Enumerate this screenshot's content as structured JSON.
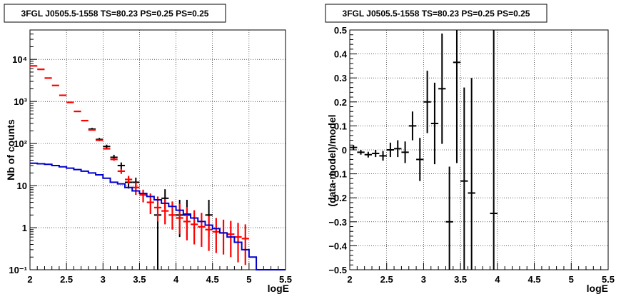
{
  "chart_data": [
    {
      "type": "line",
      "title": "3FGL J0505.5-1558 TS=80.23 PS=0.25 PS=0.25",
      "xlabel": "logE",
      "ylabel": "Nb of counts",
      "xlim": [
        2,
        5.5
      ],
      "ylim": [
        0.1,
        50000
      ],
      "yscale": "log",
      "grid": true,
      "x_ticks": [
        2,
        2.5,
        3,
        3.5,
        4,
        4.5,
        5,
        5.5
      ],
      "x_tick_labels": [
        "2",
        "2.5",
        "3",
        "3.5",
        "4",
        "4.5",
        "5",
        "5.5"
      ],
      "y_ticks": [
        0.1,
        1,
        10,
        100,
        1000,
        10000
      ],
      "y_tick_labels": [
        "10⁻¹",
        "1",
        "10",
        "10²",
        "10³",
        "10⁴"
      ],
      "bin_edges": [
        2.0,
        2.1,
        2.2,
        2.3,
        2.4,
        2.5,
        2.6,
        2.7,
        2.8,
        2.9,
        3.0,
        3.1,
        3.2,
        3.3,
        3.4,
        3.5,
        3.6,
        3.7,
        3.8,
        3.9,
        4.0,
        4.1,
        4.2,
        4.3,
        4.4,
        4.5,
        4.6,
        4.7,
        4.8,
        4.9,
        5.0,
        5.1,
        5.2,
        5.3,
        5.4,
        5.5
      ],
      "series": [
        {
          "role": "data",
          "color": "#000000",
          "x": [
            2.85,
            2.95,
            3.05,
            3.15,
            3.25,
            3.35,
            3.45,
            3.75,
            3.85,
            4.05,
            4.15,
            4.45
          ],
          "y": [
            220,
            125,
            85,
            47,
            30,
            12,
            12,
            2,
            5,
            2,
            2,
            2
          ],
          "yerr_low": [
            15,
            11,
            9,
            7,
            5.5,
            3.5,
            3.5,
            1.9,
            2.2,
            1.4,
            1.4,
            1.4
          ],
          "yerr_high": [
            15,
            11,
            9,
            7,
            5.5,
            3.5,
            3.5,
            2.6,
            3.2,
            2.6,
            2.6,
            2.6
          ]
        },
        {
          "role": "model",
          "color": "#ff0000",
          "x": [
            2.05,
            2.15,
            2.25,
            2.35,
            2.45,
            2.55,
            2.65,
            2.75,
            2.85,
            2.95,
            3.05,
            3.15,
            3.25,
            3.35,
            3.45,
            3.55,
            3.65,
            3.75,
            3.85,
            3.95,
            4.05,
            4.15,
            4.25,
            4.35,
            4.45,
            4.55,
            4.65,
            4.75,
            4.85,
            4.95
          ],
          "y": [
            7000,
            5800,
            3600,
            2400,
            1400,
            950,
            580,
            350,
            210,
            120,
            75,
            42,
            22,
            14,
            9,
            6,
            4,
            3,
            2.5,
            2,
            1.7,
            1.4,
            1.2,
            1.05,
            0.9,
            0.8,
            0.75,
            0.7,
            0.6,
            0.55
          ],
          "yerr_low": [
            0,
            0,
            0,
            0,
            0,
            0,
            0,
            0,
            0,
            0,
            0,
            3,
            3,
            3,
            3,
            2,
            1.9,
            1.6,
            1.3,
            1.1,
            1.0,
            0.9,
            0.8,
            0.7,
            0.62,
            0.55,
            0.52,
            0.5,
            0.45,
            0.42
          ],
          "yerr_high": [
            0,
            0,
            0,
            0,
            0,
            0,
            0,
            0,
            0,
            0,
            0,
            3,
            3,
            3,
            3,
            2,
            2.5,
            2.5,
            2.3,
            2.2,
            2.0,
            1.7,
            1.4,
            1.2,
            1.0,
            0.9,
            0.8,
            0.75,
            0.7,
            0.65
          ]
        },
        {
          "role": "point-source",
          "color": "#0000cc",
          "step": true,
          "values": [
            34,
            33,
            32,
            30,
            28,
            26,
            24,
            22,
            20,
            18,
            15,
            12,
            11,
            9,
            7.5,
            6.5,
            5.5,
            4.6,
            3.8,
            3.2,
            2.6,
            2.1,
            1.7,
            1.4,
            1.15,
            0.95,
            0.75,
            0.6,
            0.45,
            0.3,
            0.2,
            0.1,
            0.1,
            0.1,
            0.1
          ]
        }
      ]
    },
    {
      "type": "scatter",
      "title": "3FGL J0505.5-1558 TS=80.23 PS=0.25 PS=0.25",
      "xlabel": "logE",
      "ylabel": "(data-model)/model",
      "xlim": [
        2,
        5.5
      ],
      "ylim": [
        -0.5,
        0.5
      ],
      "grid": true,
      "x_ticks": [
        2,
        2.5,
        3,
        3.5,
        4,
        4.5,
        5,
        5.5
      ],
      "x_tick_labels": [
        "2",
        "2.5",
        "3",
        "3.5",
        "4",
        "4.5",
        "5",
        "5.5"
      ],
      "y_ticks": [
        -0.5,
        -0.4,
        -0.3,
        -0.2,
        -0.1,
        0,
        0.1,
        0.2,
        0.3,
        0.4,
        0.5
      ],
      "y_tick_labels": [
        "−0.5",
        "−0.4",
        "−0.3",
        "−0.2",
        "−0.1",
        "0",
        "0.1",
        "0.2",
        "0.3",
        "0.4",
        "0.5"
      ],
      "series": [
        {
          "color": "#000000",
          "x": [
            2.05,
            2.15,
            2.25,
            2.35,
            2.45,
            2.55,
            2.65,
            2.75,
            2.85,
            2.95,
            3.05,
            3.15,
            3.25,
            3.35,
            3.45,
            3.55,
            3.65,
            3.95
          ],
          "y": [
            0.01,
            -0.01,
            -0.02,
            -0.015,
            -0.025,
            0.0,
            0.005,
            -0.01,
            0.1,
            -0.04,
            0.2,
            0.11,
            0.255,
            -0.3,
            0.365,
            -0.13,
            -0.18,
            -0.265
          ],
          "yerr": [
            0.01,
            0.01,
            0.012,
            0.015,
            0.02,
            0.03,
            0.035,
            0.045,
            0.06,
            0.09,
            0.13,
            0.17,
            0.23,
            0.23,
            0.42,
            0.39,
            0.48,
            0.8
          ]
        }
      ]
    }
  ]
}
